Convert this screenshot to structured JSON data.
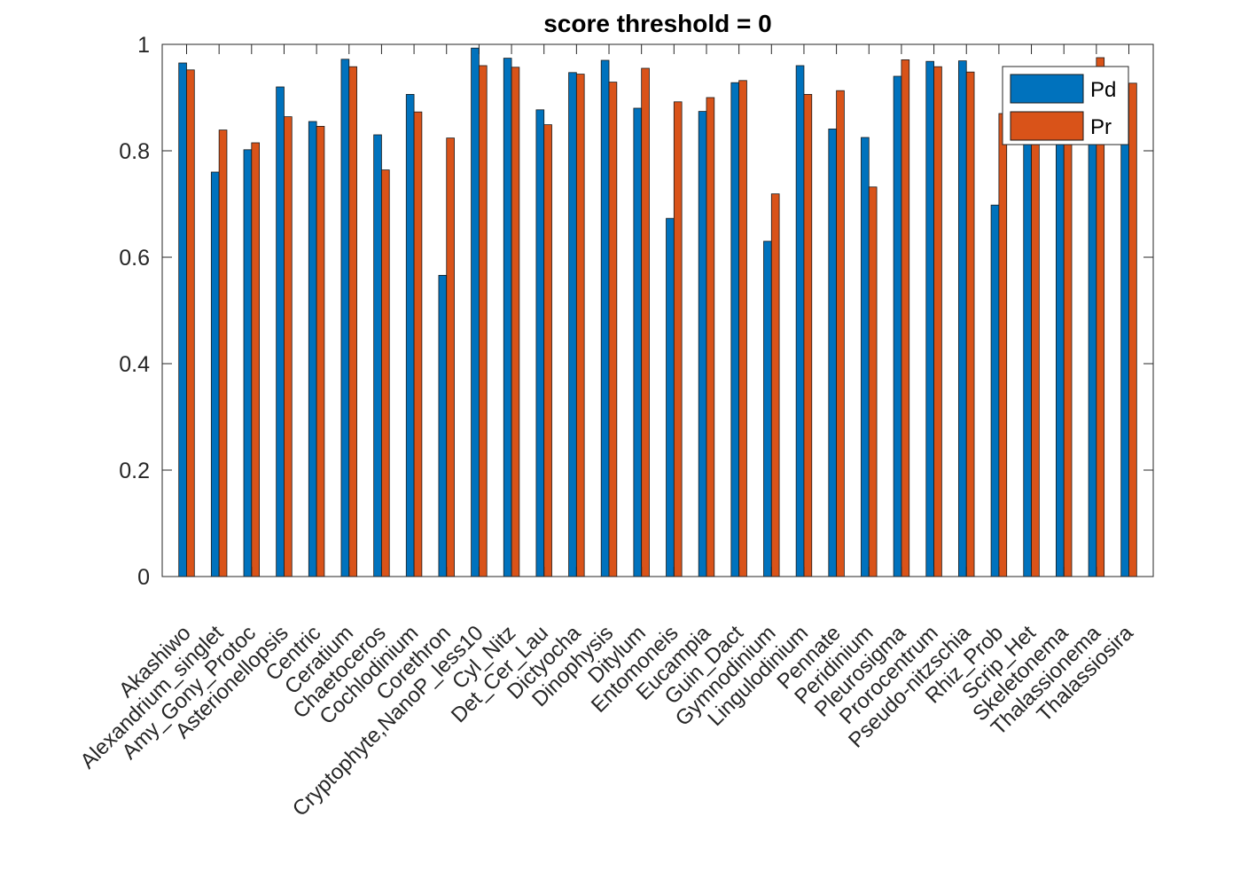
{
  "chart_data": {
    "type": "bar",
    "title": "score threshold = 0",
    "xlabel": "",
    "ylabel": "",
    "ylim": [
      0,
      1
    ],
    "yticks": [
      0,
      0.2,
      0.4,
      0.6,
      0.8,
      1
    ],
    "ytick_labels": [
      "0",
      "0.2",
      "0.4",
      "0.6",
      "0.8",
      "1"
    ],
    "grid": false,
    "legend_position": "top-right",
    "colors": {
      "Pd": "#0072BD",
      "Pr": "#D95319"
    },
    "categories": [
      "Akashiwo",
      "Alexandrium_singlet",
      "Amy_Gony_Protoc",
      "Asterionellopsis",
      "Centric",
      "Ceratium",
      "Chaetoceros",
      "Cochlodinium",
      "Corethron",
      "Cryptophyte,NanoP_less10",
      "Cyl_Nitz",
      "Det_Cer_Lau",
      "Dictyocha",
      "Dinophysis",
      "Ditylum",
      "Entomoneis",
      "Eucampia",
      "Guin_Dact",
      "Gymnodinium",
      "Lingulodinium",
      "Pennate",
      "Peridinium",
      "Pleurosigma",
      "Prorocentrum",
      "Pseudo-nitzschia",
      "Rhiz_Prob",
      "Scrip_Het",
      "Skeletonema",
      "Thalassionema",
      "Thalassiosira"
    ],
    "series": [
      {
        "name": "Pd",
        "values": [
          0.965,
          0.76,
          0.802,
          0.92,
          0.855,
          0.972,
          0.83,
          0.906,
          0.566,
          0.993,
          0.974,
          0.877,
          0.947,
          0.97,
          0.88,
          0.673,
          0.874,
          0.928,
          0.63,
          0.96,
          0.841,
          0.825,
          0.94,
          0.968,
          0.969,
          0.698,
          0.88,
          0.955,
          0.935,
          0.888
        ]
      },
      {
        "name": "Pr",
        "values": [
          0.952,
          0.839,
          0.815,
          0.864,
          0.846,
          0.958,
          0.764,
          0.873,
          0.824,
          0.96,
          0.957,
          0.849,
          0.944,
          0.929,
          0.955,
          0.892,
          0.9,
          0.932,
          0.719,
          0.906,
          0.913,
          0.732,
          0.971,
          0.958,
          0.948,
          0.87,
          0.9,
          0.905,
          0.975,
          0.927
        ]
      }
    ]
  }
}
